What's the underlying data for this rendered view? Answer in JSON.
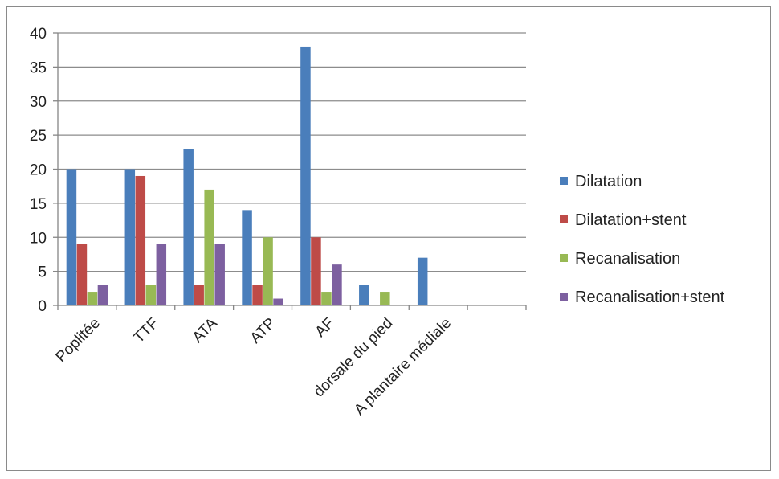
{
  "chart_data": {
    "type": "bar",
    "categories": [
      "Poplitée",
      "TTF",
      "ATA",
      "ATP",
      "AF",
      "dorsale du pied",
      "A plantaire médiale",
      ""
    ],
    "series": [
      {
        "name": "Dilatation",
        "color": "#4a7ebb",
        "values": [
          20,
          20,
          23,
          14,
          38,
          3,
          7,
          0
        ]
      },
      {
        "name": "Dilatation+stent",
        "color": "#be4b48",
        "values": [
          9,
          19,
          3,
          3,
          10,
          0,
          0,
          0
        ]
      },
      {
        "name": "Recanalisation",
        "color": "#98b954",
        "values": [
          2,
          3,
          17,
          10,
          2,
          2,
          0,
          0
        ]
      },
      {
        "name": "Recanalisation+stent",
        "color": "#7d60a0",
        "values": [
          3,
          9,
          9,
          1,
          6,
          0,
          0,
          0
        ]
      }
    ],
    "yticks": [
      "0",
      "5",
      "10",
      "15",
      "20",
      "25",
      "30",
      "35",
      "40"
    ],
    "ylim": [
      0,
      40
    ],
    "grid": true,
    "legend_position": "right",
    "title": "",
    "xlabel": "",
    "ylabel": ""
  }
}
